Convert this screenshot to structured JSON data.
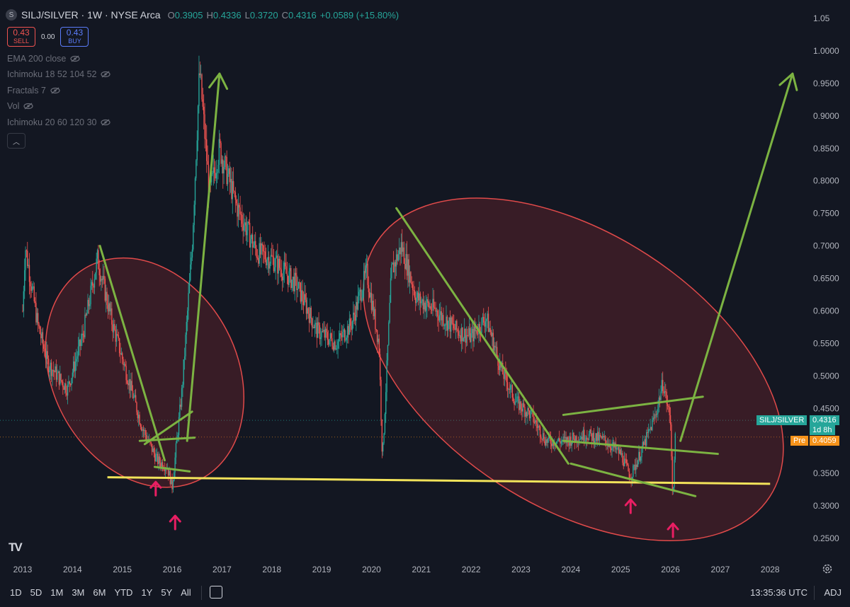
{
  "header": {
    "symbol_icon": "S",
    "symbol": "SILJ/SILVER · 1W · NYSE Arca",
    "ohlc": [
      {
        "k": "O",
        "v": "0.3905"
      },
      {
        "k": "H",
        "v": "0.4336"
      },
      {
        "k": "L",
        "v": "0.3720"
      },
      {
        "k": "C",
        "v": "0.4316"
      },
      {
        "k": "",
        "v": "+0.0589 (+15.80%)"
      }
    ]
  },
  "trade": {
    "sell_price": "0.43",
    "sell_label": "SELL",
    "spread": "0.00",
    "buy_price": "0.43",
    "buy_label": "BUY"
  },
  "indicators": [
    {
      "label": "EMA 200 close"
    },
    {
      "label": "Ichimoku 18 52 104 52"
    },
    {
      "label": "Fractals 7"
    },
    {
      "label": "Vol"
    },
    {
      "label": "Ichimoku 20 60 120 30"
    }
  ],
  "price_labels": {
    "symbol_tag": "SILJ/SILVER",
    "last": "0.4316",
    "countdown": "1d 8h",
    "pre_tag": "Pre",
    "pre": "0.4059"
  },
  "bottom": {
    "ranges": [
      "1D",
      "5D",
      "1M",
      "3M",
      "6M",
      "YTD",
      "1Y",
      "5Y",
      "All"
    ],
    "time": "13:35:36 UTC",
    "adj": "ADJ"
  },
  "colors": {
    "bg": "#131722",
    "up": "#26a69a",
    "down": "#ef5350",
    "trend": "#7cb342",
    "support": "#f2e35a",
    "ellipse": "#e04a4a",
    "arrow": "#e91e63",
    "last_bg": "#26a69a",
    "pre_bg": "#f7931a"
  },
  "chart_data": {
    "type": "candlestick",
    "title": "SILJ/SILVER · 1W · NYSE Arca",
    "x_ticks": [
      "2013",
      "2014",
      "2015",
      "2016",
      "2017",
      "2018",
      "2019",
      "2020",
      "2021",
      "2022",
      "2023",
      "2024",
      "2025",
      "2026",
      "2027",
      "2028"
    ],
    "y_ticks": [
      "1.05",
      "1.0000",
      "0.9500",
      "0.9000",
      "0.8500",
      "0.8000",
      "0.7500",
      "0.7000",
      "0.6500",
      "0.6000",
      "0.5500",
      "0.5000",
      "0.4500",
      "0.4000",
      "0.3500",
      "0.3000",
      "0.2500"
    ],
    "ylim": [
      0.23,
      1.07
    ],
    "price_path": [
      [
        2013.0,
        0.6
      ],
      [
        2013.05,
        0.7
      ],
      [
        2013.3,
        0.58
      ],
      [
        2013.5,
        0.52
      ],
      [
        2013.9,
        0.48
      ],
      [
        2014.2,
        0.56
      ],
      [
        2014.5,
        0.68
      ],
      [
        2014.8,
        0.58
      ],
      [
        2015.1,
        0.5
      ],
      [
        2015.4,
        0.42
      ],
      [
        2015.7,
        0.37
      ],
      [
        2015.9,
        0.36
      ],
      [
        2016.0,
        0.33
      ],
      [
        2016.2,
        0.48
      ],
      [
        2016.4,
        0.7
      ],
      [
        2016.55,
        0.97
      ],
      [
        2016.75,
        0.78
      ],
      [
        2016.95,
        0.85
      ],
      [
        2017.3,
        0.76
      ],
      [
        2017.7,
        0.69
      ],
      [
        2018.0,
        0.68
      ],
      [
        2018.5,
        0.64
      ],
      [
        2018.9,
        0.57
      ],
      [
        2019.3,
        0.55
      ],
      [
        2019.6,
        0.58
      ],
      [
        2019.9,
        0.66
      ],
      [
        2020.15,
        0.55
      ],
      [
        2020.22,
        0.37
      ],
      [
        2020.4,
        0.66
      ],
      [
        2020.6,
        0.7
      ],
      [
        2020.9,
        0.62
      ],
      [
        2021.3,
        0.6
      ],
      [
        2021.7,
        0.57
      ],
      [
        2022.0,
        0.56
      ],
      [
        2022.3,
        0.59
      ],
      [
        2022.6,
        0.51
      ],
      [
        2022.9,
        0.46
      ],
      [
        2023.2,
        0.44
      ],
      [
        2023.5,
        0.4
      ],
      [
        2023.9,
        0.4
      ],
      [
        2024.3,
        0.41
      ],
      [
        2024.7,
        0.4
      ],
      [
        2025.0,
        0.38
      ],
      [
        2025.2,
        0.345
      ],
      [
        2025.5,
        0.4
      ],
      [
        2025.7,
        0.44
      ],
      [
        2025.85,
        0.49
      ],
      [
        2026.0,
        0.43
      ],
      [
        2026.05,
        0.3
      ],
      [
        2026.1,
        0.4316
      ]
    ],
    "annotations": {
      "support_line": [
        [
          2014.7,
          0.344
        ],
        [
          2028.0,
          0.334
        ]
      ],
      "trend_lines": [
        [
          [
            2014.55,
            0.7
          ],
          [
            2015.85,
            0.37
          ]
        ],
        [
          [
            2015.45,
            0.395
          ],
          [
            2016.4,
            0.445
          ]
        ],
        [
          [
            2015.35,
            0.4
          ],
          [
            2016.45,
            0.405
          ]
        ],
        [
          [
            2015.65,
            0.36
          ],
          [
            2016.35,
            0.353
          ]
        ],
        [
          [
            2020.5,
            0.758
          ],
          [
            2023.95,
            0.365
          ]
        ],
        [
          [
            2023.85,
            0.44
          ],
          [
            2026.65,
            0.468
          ]
        ],
        [
          [
            2023.85,
            0.4
          ],
          [
            2026.95,
            0.38
          ]
        ],
        [
          [
            2024.0,
            0.365
          ],
          [
            2026.5,
            0.315
          ]
        ]
      ],
      "growth_arrows": [
        [
          [
            2016.3,
            0.4
          ],
          [
            2016.95,
            0.965
          ]
        ],
        [
          [
            2026.2,
            0.4
          ],
          [
            2028.45,
            0.965
          ]
        ]
      ],
      "ellipses": [
        {
          "cx": 2015.45,
          "cy": 0.505,
          "rx_years": 1.85,
          "ry": 0.185,
          "tilt_deg": -28
        },
        {
          "cx": 2024.05,
          "cy": 0.51,
          "rx_years": 4.7,
          "ry": 0.21,
          "tilt_deg": 33
        }
      ],
      "bottom_markers": [
        {
          "x": 2015.67,
          "y": 0.327
        },
        {
          "x": 2016.06,
          "y": 0.275
        },
        {
          "x": 2025.2,
          "y": 0.3
        },
        {
          "x": 2026.05,
          "y": 0.263
        }
      ]
    }
  }
}
